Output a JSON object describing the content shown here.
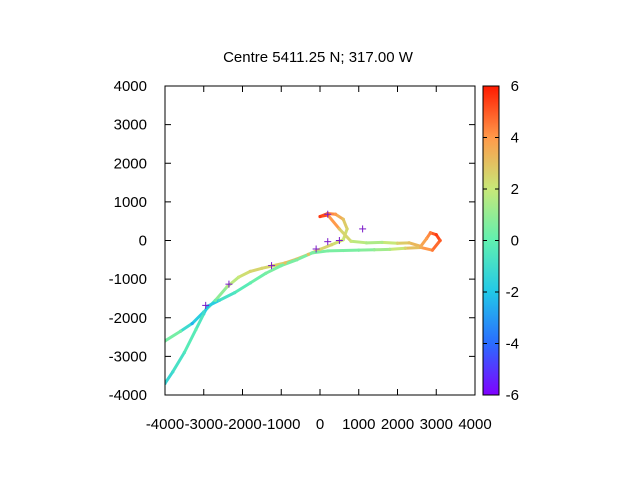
{
  "chart_data": {
    "type": "scatter",
    "title": "Centre 5411.25 N; 317.00  W",
    "xlabel": "",
    "ylabel": "",
    "xlim": [
      -4000,
      4000
    ],
    "ylim": [
      -4000,
      4000
    ],
    "x_ticks": [
      -4000,
      -3000,
      -2000,
      -1000,
      0,
      1000,
      2000,
      3000,
      4000
    ],
    "y_ticks": [
      -4000,
      -3000,
      -2000,
      -1000,
      0,
      1000,
      2000,
      3000,
      4000
    ],
    "x_tick_labels": [
      "-4000",
      "-3000",
      "-2000",
      "-1000",
      "0",
      "1000",
      "2000",
      "3000",
      "4000"
    ],
    "y_tick_labels": [
      "-4000",
      "-3000",
      "-2000",
      "-1000",
      "0",
      "1000",
      "2000",
      "3000",
      "4000"
    ],
    "colorbar": {
      "range": [
        -6,
        6
      ],
      "ticks": [
        -6,
        -4,
        -2,
        0,
        2,
        4,
        6
      ],
      "tick_labels": [
        "-6",
        "-4",
        "-2",
        "0",
        "2",
        "4",
        "6"
      ],
      "palette": "rainbow"
    },
    "grid": false,
    "legend": "none",
    "series": [
      {
        "points": [
          [
            -4000,
            -2600,
            0.5
          ],
          [
            -3600,
            -2350,
            0.3
          ],
          [
            -3300,
            -2150,
            -2.5
          ],
          [
            -3000,
            -1850,
            -1.0
          ],
          [
            -2700,
            -1550,
            0.3
          ],
          [
            -2400,
            -1200,
            1.5
          ],
          [
            -2100,
            -950,
            2.0
          ],
          [
            -1800,
            -800,
            2.5
          ],
          [
            -1500,
            -720,
            2.5
          ],
          [
            -1200,
            -650,
            2.5
          ],
          [
            -900,
            -580,
            3.0
          ],
          [
            -600,
            -480,
            3.0
          ],
          [
            -300,
            -360,
            3.0
          ],
          [
            0,
            -230,
            2.5
          ],
          [
            300,
            -110,
            2.5
          ],
          [
            600,
            20,
            2.0
          ],
          [
            700,
            300,
            2.5
          ],
          [
            600,
            550,
            3.0
          ],
          [
            400,
            680,
            4.0
          ],
          [
            200,
            700,
            4.5
          ],
          [
            0,
            620,
            5.5
          ],
          [
            200,
            660,
            5.0
          ],
          [
            500,
            300,
            3.0
          ],
          [
            800,
            -20,
            2.0
          ],
          [
            1200,
            -60,
            1.5
          ],
          [
            1600,
            -50,
            1.5
          ],
          [
            2000,
            -70,
            2.5
          ],
          [
            2300,
            -60,
            3.0
          ],
          [
            2600,
            -150,
            3.5
          ],
          [
            2750,
            50,
            4.0
          ],
          [
            2850,
            200,
            4.5
          ],
          [
            3000,
            150,
            5.5
          ],
          [
            3100,
            0,
            5.0
          ],
          [
            2900,
            -250,
            4.5
          ],
          [
            2600,
            -180,
            3.5
          ],
          [
            2200,
            -200,
            2.5
          ],
          [
            1800,
            -230,
            1.5
          ],
          [
            1400,
            -240,
            1.0
          ],
          [
            1000,
            -250,
            0.5
          ],
          [
            600,
            -260,
            0.5
          ],
          [
            200,
            -270,
            0.5
          ],
          [
            -200,
            -320,
            0.5
          ],
          [
            -600,
            -500,
            0.5
          ],
          [
            -1000,
            -650,
            0.5
          ],
          [
            -1400,
            -850,
            0.5
          ],
          [
            -1800,
            -1100,
            0.0
          ],
          [
            -2200,
            -1350,
            -0.5
          ],
          [
            -2600,
            -1550,
            -1.0
          ],
          [
            -2900,
            -1700,
            -2.5
          ],
          [
            -3000,
            -1900,
            -1.0
          ],
          [
            -3200,
            -2300,
            0.0
          ],
          [
            -3500,
            -2900,
            -0.5
          ],
          [
            -3800,
            -3400,
            -1.0
          ],
          [
            -4000,
            -3700,
            -1.5
          ]
        ]
      }
    ],
    "markers": [
      [
        200,
        680
      ],
      [
        1100,
        300
      ],
      [
        500,
        0
      ],
      [
        200,
        -30
      ],
      [
        -100,
        -220
      ],
      [
        -1250,
        -650
      ],
      [
        -2350,
        -1130
      ],
      [
        -2950,
        -1680
      ]
    ],
    "marker_color": "#7a18c8"
  }
}
